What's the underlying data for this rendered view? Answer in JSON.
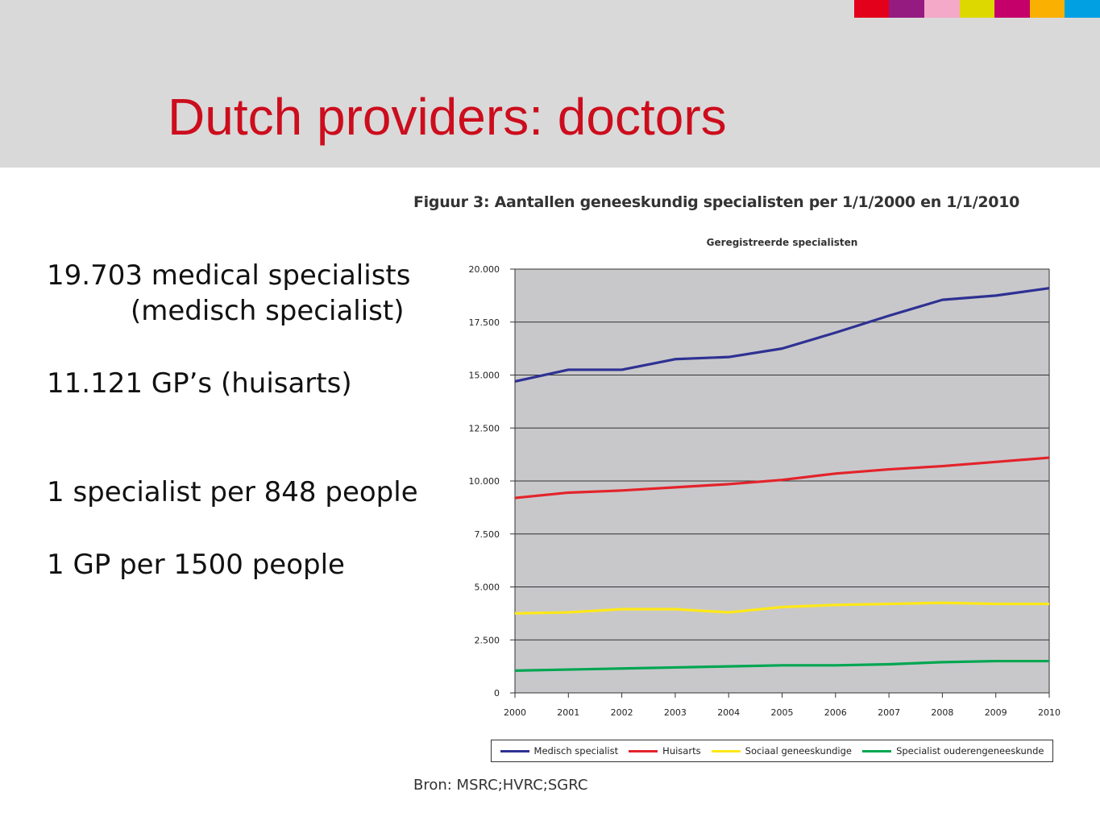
{
  "slide": {
    "title": "Dutch providers: doctors",
    "color_strip": [
      "#e3001b",
      "#951b81",
      "#f4a9c9",
      "#dcd800",
      "#c5006b",
      "#f9b000",
      "#00a0e2"
    ],
    "bullets": [
      {
        "line1": "19.703 medical specialists",
        "line2": "(medisch specialist)"
      },
      {
        "line1": "11.121 GP’s (huisarts)"
      },
      {
        "line1": "1 specialist per 848 people"
      },
      {
        "line1": "1 GP per 1500 people"
      }
    ],
    "figure_caption": "Figuur 3: Aantallen geneeskundig specialisten per 1/1/2000 en 1/1/2010",
    "source": "Bron: MSRC;HVRC;SGRC"
  },
  "chart_data": {
    "type": "line",
    "title": "Geregistreerde specialisten",
    "x": [
      "2000",
      "2001",
      "2002",
      "2003",
      "2004",
      "2005",
      "2006",
      "2007",
      "2008",
      "2009",
      "2010"
    ],
    "ylim": [
      0,
      20000
    ],
    "yticks": [
      0,
      2500,
      5000,
      7500,
      10000,
      12500,
      15000,
      17500,
      20000
    ],
    "ytick_labels": [
      "0",
      "2.500",
      "5.000",
      "7.500",
      "10.000",
      "12.500",
      "15.000",
      "17.500",
      "20.000"
    ],
    "grid": "horizontal",
    "plot_background": "#c8c8cb",
    "legend_position": "bottom",
    "series": [
      {
        "name": "Medisch specialist",
        "color": "#2e3192",
        "values": [
          14700,
          15250,
          15250,
          15750,
          15850,
          16250,
          17000,
          17800,
          18550,
          18750,
          19100
        ]
      },
      {
        "name": "Huisarts",
        "color": "#e3232a",
        "values": [
          9200,
          9450,
          9550,
          9700,
          9850,
          10050,
          10350,
          10550,
          10700,
          10900,
          11100
        ]
      },
      {
        "name": "Sociaal geneeskundige",
        "color": "#ffe817",
        "values": [
          3750,
          3800,
          3950,
          3950,
          3800,
          4050,
          4150,
          4200,
          4250,
          4200,
          4200
        ]
      },
      {
        "name": "Specialist ouderengeneeskunde",
        "color": "#00a651",
        "values": [
          1050,
          1100,
          1150,
          1200,
          1250,
          1300,
          1300,
          1350,
          1450,
          1500,
          1500
        ]
      }
    ]
  }
}
